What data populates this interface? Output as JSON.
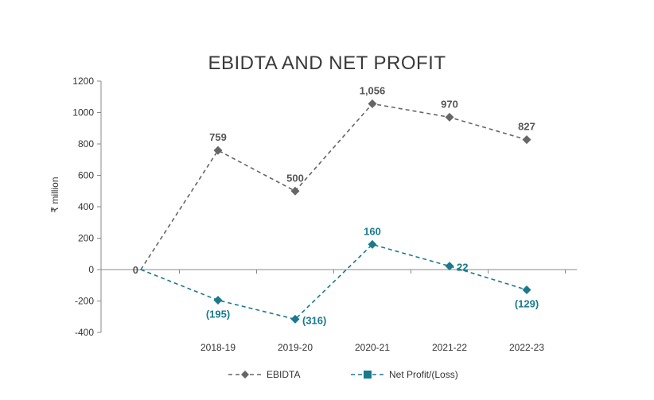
{
  "chart_data": {
    "type": "line",
    "title": "EBIDTA AND NET PROFIT",
    "ylabel": "₹ million",
    "xlabel": "",
    "x": [
      "",
      "2018-19",
      "2019-20",
      "2020-21",
      "2021-22",
      "2022-23"
    ],
    "ylim": [
      -400,
      1200
    ],
    "yticks": [
      -400,
      -200,
      0,
      200,
      400,
      600,
      800,
      1000,
      1200
    ],
    "ytick_labels": [
      "-400",
      "-200",
      "0",
      "200",
      "400",
      "600",
      "800",
      "1000",
      "1200"
    ],
    "grid": false,
    "legend_position": "bottom",
    "series": [
      {
        "name": "EBIDTA",
        "color": "#666666",
        "marker": "diamond",
        "line_style": "dashed",
        "values": [
          0,
          759,
          500,
          1056,
          970,
          827
        ],
        "labels": [
          "0",
          "759",
          "500",
          "1,056",
          "970",
          "827"
        ],
        "label_pos": [
          "left",
          "above",
          "above",
          "above",
          "above",
          "above"
        ]
      },
      {
        "name": "Net Profit/(Loss)",
        "color": "#1a7a8c",
        "marker": "diamond",
        "line_style": "dashed",
        "values": [
          0,
          -195,
          -316,
          160,
          22,
          -129
        ],
        "labels": [
          "",
          "(195)",
          "(316)",
          "160",
          "22",
          "(129)"
        ],
        "label_pos": [
          "none",
          "below",
          "right",
          "above",
          "right",
          "below"
        ]
      }
    ]
  }
}
